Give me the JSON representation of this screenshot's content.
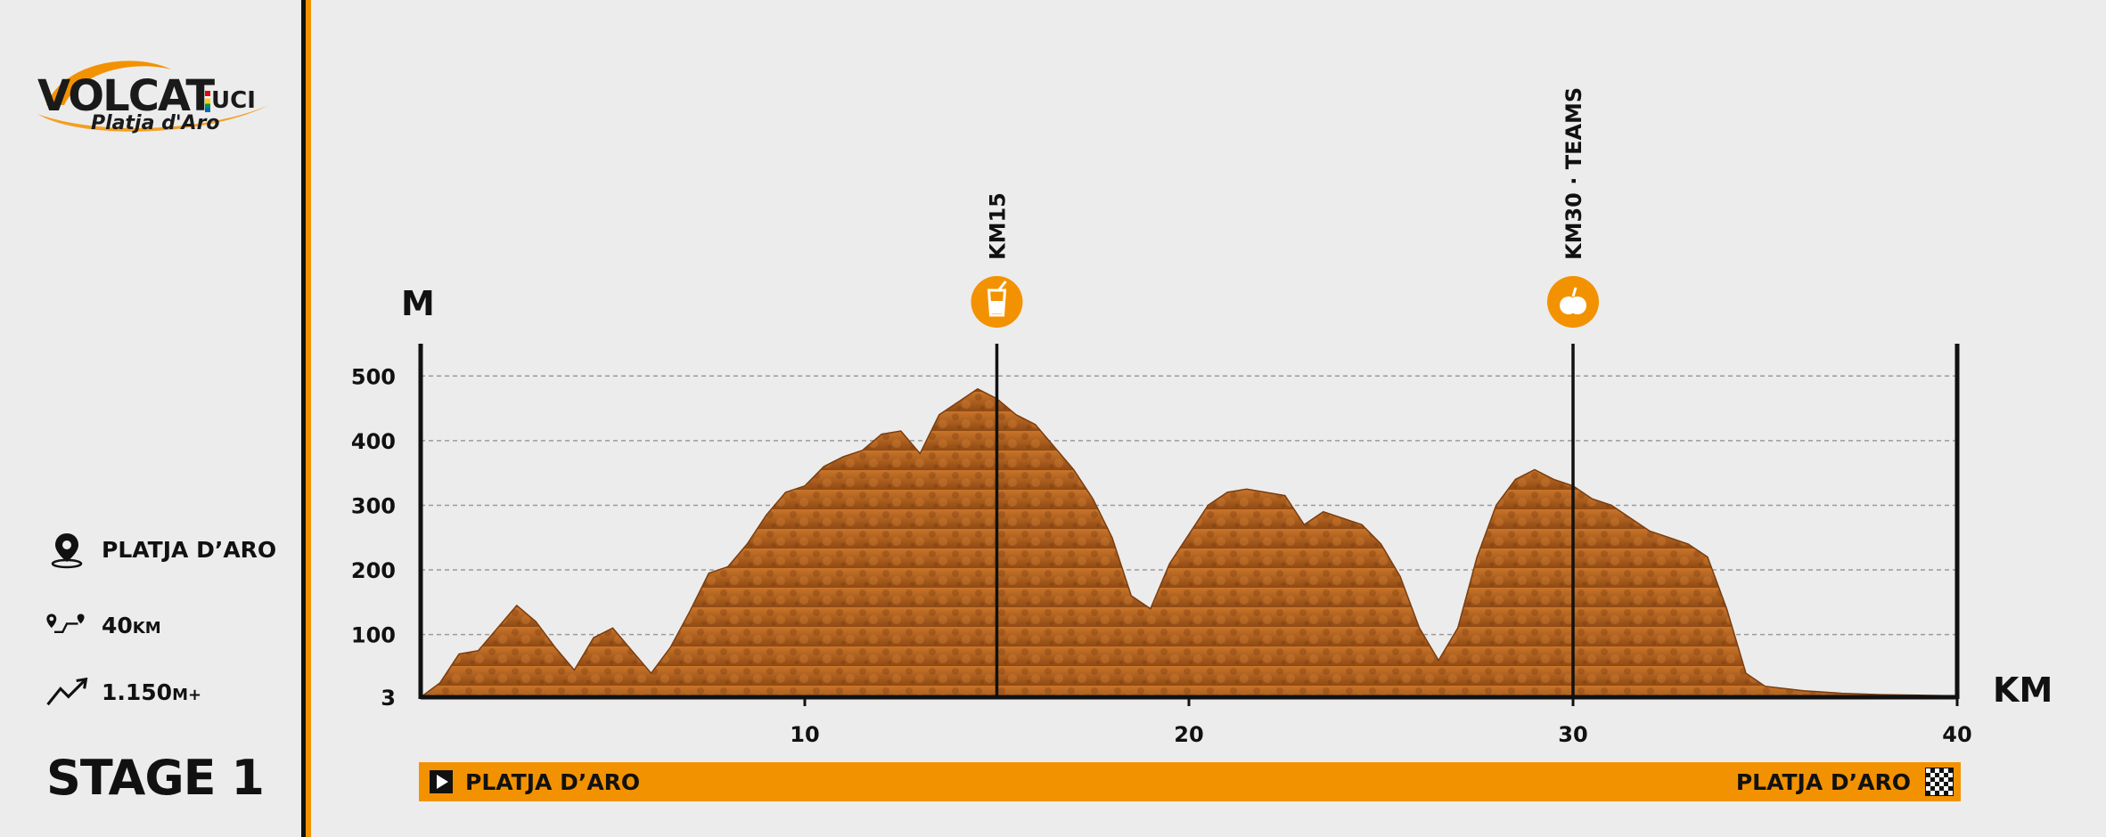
{
  "brand": {
    "logo_text": "VOLCAT",
    "logo_badge": "UCI",
    "logo_sub": "Platja d'Aro"
  },
  "sidebar": {
    "location": "PLATJA D’ARO",
    "distance_value": "40",
    "distance_unit": "KM",
    "elevation_value": "1.150",
    "elevation_unit": "M+",
    "stage": "STAGE 1"
  },
  "colors": {
    "accent": "#f39200",
    "mountain": "#b8651f",
    "text": "#111111",
    "background": "#ececec"
  },
  "route": {
    "start_label": "PLATJA D’ARO",
    "finish_label": "PLATJA D’ARO",
    "start_icon": "play-icon",
    "finish_icon": "checkered-flag-icon"
  },
  "chart_data": {
    "type": "area",
    "xlabel": "KM",
    "ylabel": "M",
    "xlim": [
      0,
      40
    ],
    "ylim": [
      3,
      550
    ],
    "x_ticks": [
      10,
      20,
      30,
      40
    ],
    "y_ticks": [
      3,
      100,
      200,
      300,
      400,
      500
    ],
    "grid": true,
    "x": [
      0,
      0.5,
      1,
      1.5,
      2,
      2.5,
      3,
      3.5,
      4,
      4.5,
      5,
      5.5,
      6,
      6.5,
      7,
      7.5,
      8,
      8.5,
      9,
      9.5,
      10,
      10.5,
      11,
      11.5,
      12,
      12.5,
      13,
      13.5,
      14,
      14.5,
      15,
      15.5,
      16,
      16.5,
      17,
      17.5,
      18,
      18.5,
      19,
      19.5,
      20,
      20.5,
      21,
      21.5,
      22,
      22.5,
      23,
      23.5,
      24,
      24.5,
      25,
      25.5,
      26,
      26.5,
      27,
      27.5,
      28,
      28.5,
      29,
      29.5,
      30,
      30.5,
      31,
      31.5,
      32,
      32.5,
      33,
      33.5,
      34,
      34.5,
      35,
      36,
      37,
      38,
      39,
      40
    ],
    "y": [
      3,
      25,
      70,
      75,
      110,
      145,
      120,
      80,
      45,
      95,
      110,
      75,
      40,
      80,
      135,
      195,
      205,
      240,
      285,
      320,
      330,
      360,
      375,
      385,
      410,
      415,
      380,
      440,
      460,
      480,
      465,
      440,
      425,
      390,
      355,
      310,
      250,
      160,
      140,
      210,
      255,
      300,
      320,
      325,
      320,
      315,
      270,
      290,
      280,
      270,
      240,
      190,
      110,
      60,
      110,
      220,
      300,
      340,
      355,
      340,
      330,
      310,
      300,
      280,
      260,
      250,
      240,
      220,
      140,
      40,
      20,
      13,
      9,
      7,
      6,
      5
    ],
    "markers": [
      {
        "km": 15,
        "label": "KM15",
        "icon": "drink-icon"
      },
      {
        "km": 30,
        "label": "KM30 · TEAMS",
        "icon": "apple-icon"
      }
    ]
  }
}
